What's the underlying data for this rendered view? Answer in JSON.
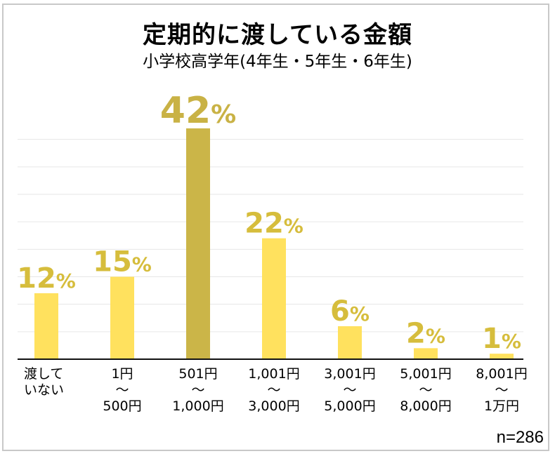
{
  "chart_data": {
    "type": "bar",
    "title": "定期的に渡している金額",
    "subtitle": "小学校高学年(4年生・5年生・6年生)",
    "categories": [
      "渡して\nいない",
      "1円\n〜\n500円",
      "501円\n〜\n1,000円",
      "1,001円\n〜\n3,000円",
      "3,001円\n〜\n5,000円",
      "5,001円\n〜\n8,000円",
      "8,001円\n〜\n1万円"
    ],
    "values": [
      12,
      15,
      42,
      22,
      6,
      2,
      1
    ],
    "data_labels": [
      "12%",
      "15%",
      "42%",
      "22%",
      "6%",
      "2%",
      "1%"
    ],
    "highlight_index": 2,
    "ylim": [
      0,
      42
    ],
    "grid": true,
    "grid_step": 5,
    "colors": {
      "bar": "#FFE15E",
      "highlight": "#CBB548",
      "label": "#D6BD3C",
      "highlight_label": "#C9B245",
      "grid": "#e6e6e6",
      "axis": "#111111"
    },
    "note": "n=286"
  }
}
